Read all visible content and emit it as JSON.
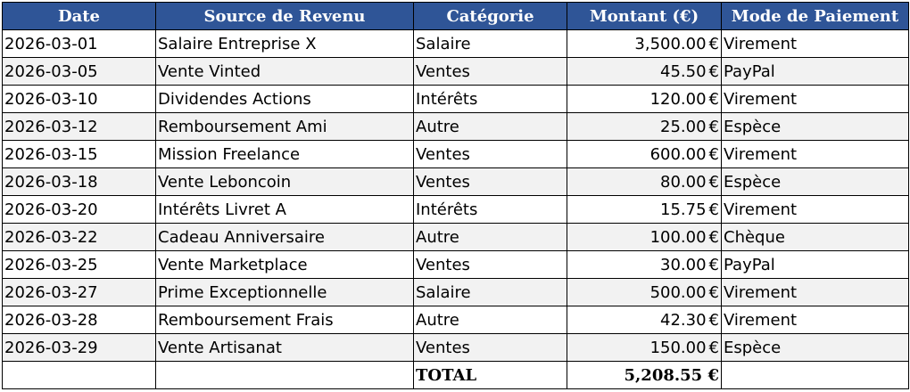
{
  "headers": {
    "date": "Date",
    "source": "Source de Revenu",
    "category": "Catégorie",
    "amount": "Montant (€)",
    "payment": "Mode de Paiement"
  },
  "currency_symbol": "€",
  "rows": [
    {
      "date": "2026-03-01",
      "source": "Salaire Entreprise X",
      "category": "Salaire",
      "amount": "3,500.00",
      "payment": "Virement"
    },
    {
      "date": "2026-03-05",
      "source": "Vente Vinted",
      "category": "Ventes",
      "amount": "45.50",
      "payment": "PayPal"
    },
    {
      "date": "2026-03-10",
      "source": "Dividendes Actions",
      "category": "Intérêts",
      "amount": "120.00",
      "payment": "Virement"
    },
    {
      "date": "2026-03-12",
      "source": "Remboursement Ami",
      "category": "Autre",
      "amount": "25.00",
      "payment": "Espèce"
    },
    {
      "date": "2026-03-15",
      "source": "Mission Freelance",
      "category": "Ventes",
      "amount": "600.00",
      "payment": "Virement"
    },
    {
      "date": "2026-03-18",
      "source": "Vente Leboncoin",
      "category": "Ventes",
      "amount": "80.00",
      "payment": "Espèce"
    },
    {
      "date": "2026-03-20",
      "source": "Intérêts Livret A",
      "category": "Intérêts",
      "amount": "15.75",
      "payment": "Virement"
    },
    {
      "date": "2026-03-22",
      "source": "Cadeau Anniversaire",
      "category": "Autre",
      "amount": "100.00",
      "payment": "Chèque"
    },
    {
      "date": "2026-03-25",
      "source": "Vente Marketplace",
      "category": "Ventes",
      "amount": "30.00",
      "payment": "PayPal"
    },
    {
      "date": "2026-03-27",
      "source": "Prime Exceptionnelle",
      "category": "Salaire",
      "amount": "500.00",
      "payment": "Virement"
    },
    {
      "date": "2026-03-28",
      "source": "Remboursement Frais",
      "category": "Autre",
      "amount": "42.30",
      "payment": "Virement"
    },
    {
      "date": "2026-03-29",
      "source": "Vente Artisanat",
      "category": "Ventes",
      "amount": "150.00",
      "payment": "Espèce"
    }
  ],
  "total": {
    "label": "TOTAL",
    "value": "5,208.55 €"
  },
  "colors": {
    "header_bg": "#2f5597",
    "header_text": "#ffffff",
    "stripe_bg": "#f2f2f2",
    "border": "#000000"
  }
}
